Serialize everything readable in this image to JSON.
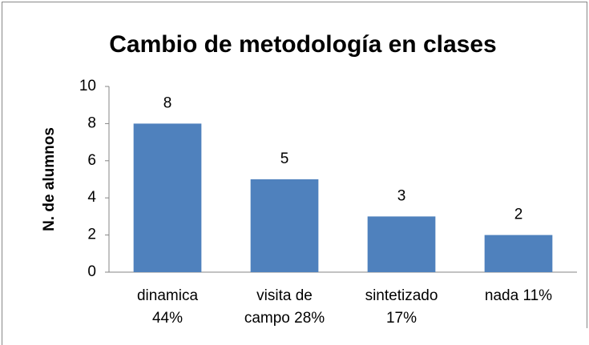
{
  "chart_data": {
    "type": "bar",
    "title": "Cambio de metodología en clases",
    "y_label": "N. de alumnos",
    "categories": [
      "dinamica\n44%",
      "visita de\ncampo  28%",
      "sintetizado\n17%",
      "nada  11%"
    ],
    "values": [
      8,
      5,
      3,
      2
    ],
    "color": "#4f81bd",
    "ylim": [
      0,
      10
    ],
    "yticks": [
      0,
      2,
      4,
      6,
      8,
      10
    ],
    "grid": false,
    "data_labels": true
  }
}
